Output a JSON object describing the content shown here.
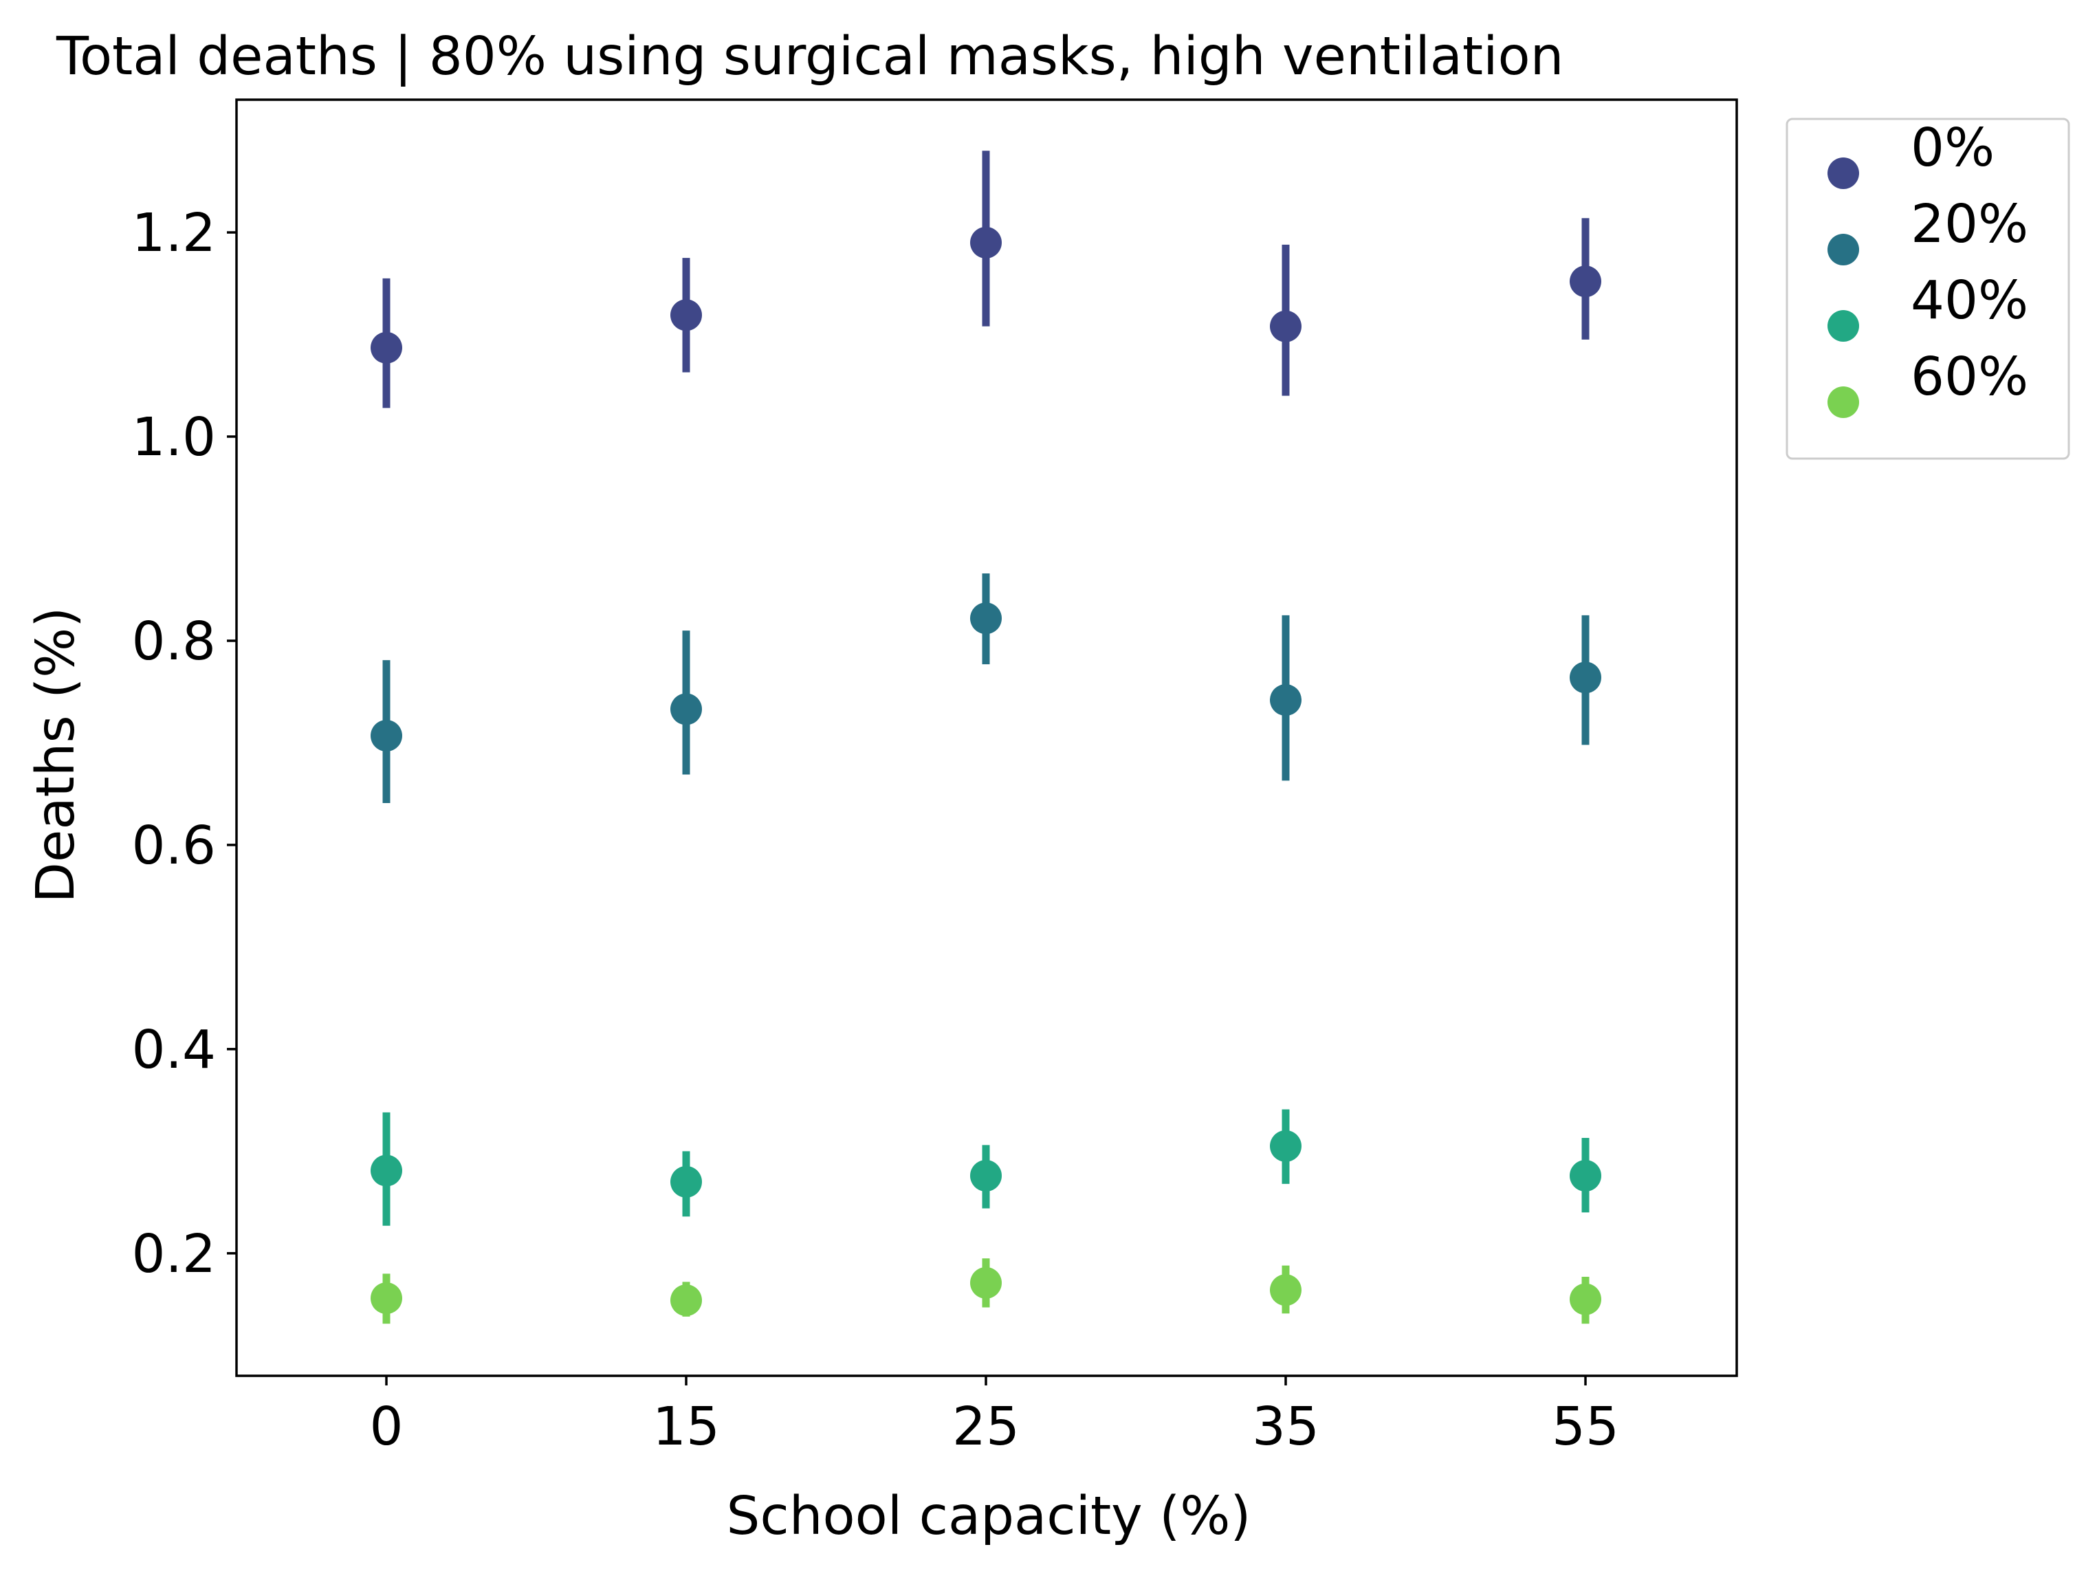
{
  "chart_data": {
    "type": "scatter",
    "title": "Total deaths | 80% using surgical masks, high ventilation",
    "xlabel": "School capacity (%)",
    "ylabel": "Deaths (%)",
    "categories": [
      "0",
      "15",
      "25",
      "35",
      "55"
    ],
    "y_ticks": [
      "0.2",
      "0.4",
      "0.6",
      "0.8",
      "1.0",
      "1.2"
    ],
    "ylim": [
      0.08,
      1.33
    ],
    "grid": false,
    "legend_position": "outside-top-right",
    "series": [
      {
        "name": "0%",
        "color": "#3f4788",
        "values": [
          1.087,
          1.119,
          1.19,
          1.108,
          1.152
        ],
        "err_low": [
          1.028,
          1.063,
          1.108,
          1.04,
          1.095
        ],
        "err_high": [
          1.155,
          1.175,
          1.28,
          1.188,
          1.214
        ]
      },
      {
        "name": "20%",
        "color": "#277185",
        "values": [
          0.707,
          0.733,
          0.822,
          0.742,
          0.764
        ],
        "err_low": [
          0.641,
          0.669,
          0.777,
          0.663,
          0.698
        ],
        "err_high": [
          0.781,
          0.81,
          0.866,
          0.825,
          0.825
        ]
      },
      {
        "name": "40%",
        "color": "#22a884",
        "values": [
          0.281,
          0.27,
          0.276,
          0.305,
          0.276
        ],
        "err_low": [
          0.227,
          0.236,
          0.244,
          0.268,
          0.24
        ],
        "err_high": [
          0.338,
          0.3,
          0.306,
          0.341,
          0.313
        ]
      },
      {
        "name": "60%",
        "color": "#7ad151",
        "values": [
          0.156,
          0.154,
          0.171,
          0.164,
          0.155
        ],
        "err_low": [
          0.131,
          0.138,
          0.147,
          0.141,
          0.131
        ],
        "err_high": [
          0.18,
          0.172,
          0.195,
          0.188,
          0.177
        ]
      }
    ]
  }
}
